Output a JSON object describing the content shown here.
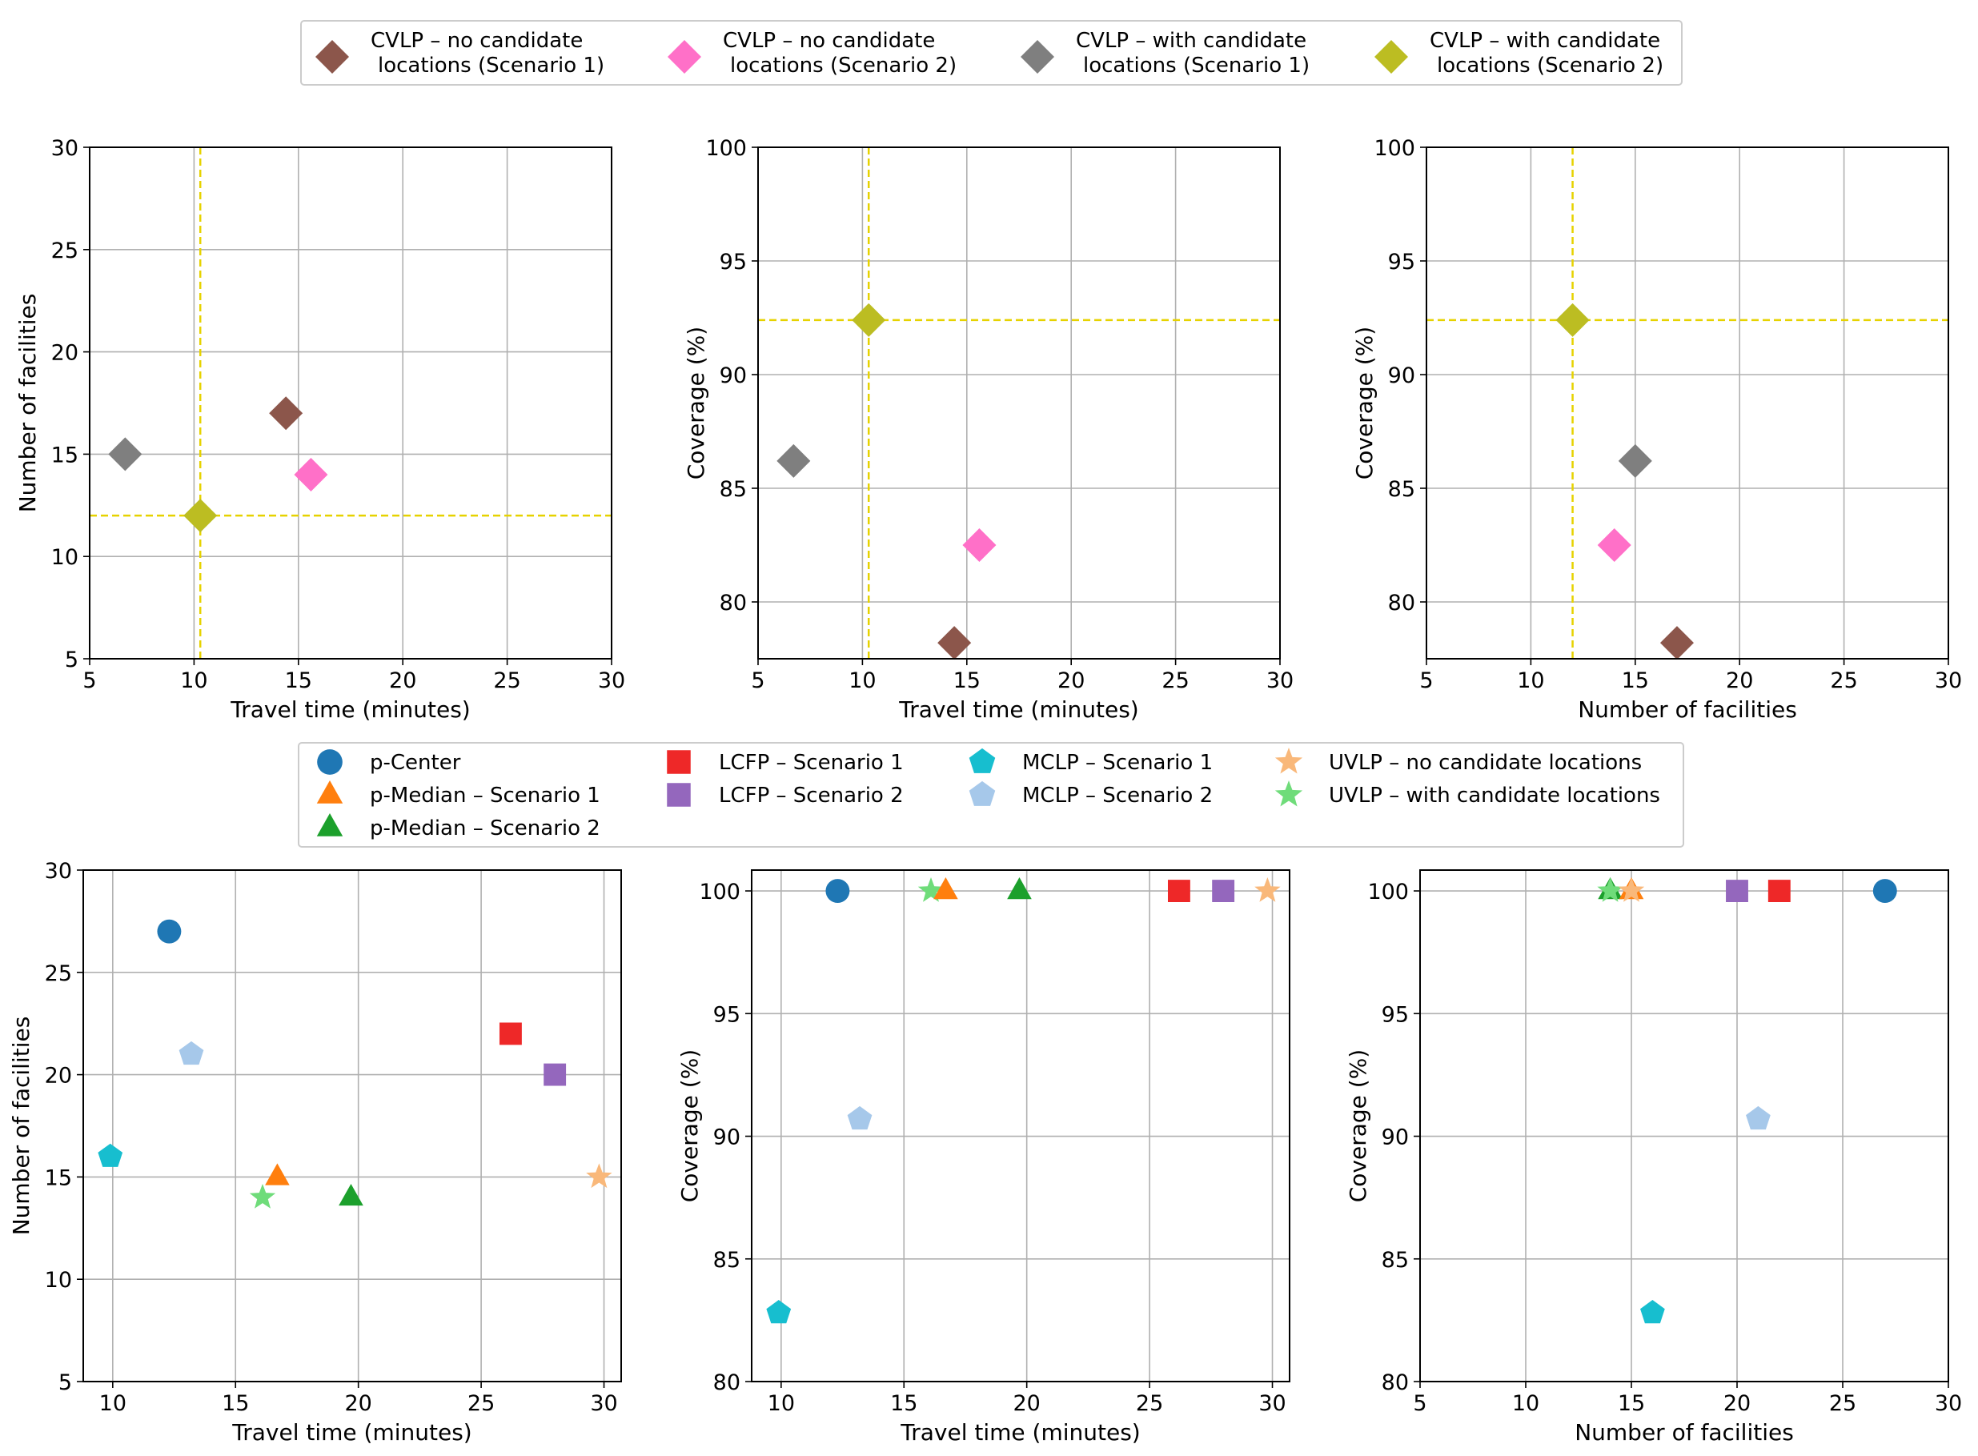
{
  "legends": {
    "top": {
      "entries": [
        {
          "key": "cvlp_nc_s1",
          "line1": "CVLP – no candidate",
          "line2": "locations (Scenario 1)"
        },
        {
          "key": "cvlp_nc_s2",
          "line1": "CVLP – no candidate",
          "line2": "locations (Scenario 2)"
        },
        {
          "key": "cvlp_wc_s1",
          "line1": "CVLP – with candidate",
          "line2": "locations (Scenario 1)"
        },
        {
          "key": "cvlp_wc_s2",
          "line1": "CVLP – with candidate",
          "line2": "locations (Scenario 2)"
        }
      ]
    },
    "bottom": {
      "entries": [
        {
          "key": "pcenter",
          "label": "p-Center"
        },
        {
          "key": "pmedian_s1",
          "label": "p-Median – Scenario 1"
        },
        {
          "key": "pmedian_s2",
          "label": "p-Median – Scenario 2"
        },
        {
          "key": "lcfp_s1",
          "label": "LCFP – Scenario 1"
        },
        {
          "key": "lcfp_s2",
          "label": "LCFP – Scenario 2"
        },
        {
          "key": "mclp_s1",
          "label": "MCLP – Scenario 1"
        },
        {
          "key": "mclp_s2",
          "label": "MCLP – Scenario 2"
        },
        {
          "key": "uvlp_nc",
          "label": "UVLP – no candidate locations"
        },
        {
          "key": "uvlp_wc",
          "label": "UVLP – with candidate locations"
        }
      ]
    }
  },
  "series_styles": {
    "cvlp_nc_s1": {
      "marker": "diamond",
      "color": "#8c564b"
    },
    "cvlp_nc_s2": {
      "marker": "diamond",
      "color": "#ff70c8"
    },
    "cvlp_wc_s1": {
      "marker": "diamond",
      "color": "#7f7f7f"
    },
    "cvlp_wc_s2": {
      "marker": "diamond",
      "color": "#bcbd22"
    },
    "pcenter": {
      "marker": "circle",
      "color": "#1f77b4"
    },
    "pmedian_s1": {
      "marker": "triangle",
      "color": "#ff7f0e"
    },
    "pmedian_s2": {
      "marker": "triangle",
      "color": "#1ca02c"
    },
    "lcfp_s1": {
      "marker": "square",
      "color": "#ee2828"
    },
    "lcfp_s2": {
      "marker": "square",
      "color": "#9467bd"
    },
    "mclp_s1": {
      "marker": "pentagon",
      "color": "#17becf"
    },
    "mclp_s2": {
      "marker": "pentagon",
      "color": "#a6c8ea"
    },
    "uvlp_nc": {
      "marker": "star",
      "color": "#f9b87a"
    },
    "uvlp_wc": {
      "marker": "star",
      "color": "#6fdc7a"
    }
  },
  "chart_data": [
    {
      "type": "scatter",
      "name": "top-left",
      "row": "top",
      "xlabel": "Travel time (minutes)",
      "ylabel": "Number of facilities",
      "xlim": [
        5,
        30
      ],
      "ylim": [
        5,
        30
      ],
      "xticks": [
        5,
        10,
        15,
        20,
        25,
        30
      ],
      "yticks": [
        5,
        10,
        15,
        20,
        25,
        30
      ],
      "ref_lines": {
        "x": 10.3,
        "y": 12,
        "color": "#e6d200"
      },
      "points": [
        {
          "series": "cvlp_nc_s1",
          "x": 14.4,
          "y": 17
        },
        {
          "series": "cvlp_nc_s2",
          "x": 15.6,
          "y": 14
        },
        {
          "series": "cvlp_wc_s1",
          "x": 6.7,
          "y": 15
        },
        {
          "series": "cvlp_wc_s2",
          "x": 10.3,
          "y": 12
        }
      ]
    },
    {
      "type": "scatter",
      "name": "top-middle",
      "row": "top",
      "xlabel": "Travel time (minutes)",
      "ylabel": "Coverage (%)",
      "xlim": [
        5,
        30
      ],
      "ylim": [
        77.5,
        100
      ],
      "xticks": [
        5,
        10,
        15,
        20,
        25,
        30
      ],
      "yticks": [
        80,
        85,
        90,
        95,
        100
      ],
      "ref_lines": {
        "x": 10.3,
        "y": 92.4,
        "color": "#e6d200"
      },
      "points": [
        {
          "series": "cvlp_nc_s1",
          "x": 14.4,
          "y": 78.2
        },
        {
          "series": "cvlp_nc_s2",
          "x": 15.6,
          "y": 82.5
        },
        {
          "series": "cvlp_wc_s1",
          "x": 6.7,
          "y": 86.2
        },
        {
          "series": "cvlp_wc_s2",
          "x": 10.3,
          "y": 92.4
        }
      ]
    },
    {
      "type": "scatter",
      "name": "top-right",
      "row": "top",
      "xlabel": "Number of facilities",
      "ylabel": "Coverage (%)",
      "xlim": [
        5,
        30
      ],
      "ylim": [
        77.5,
        100
      ],
      "xticks": [
        5,
        10,
        15,
        20,
        25,
        30
      ],
      "yticks": [
        80,
        85,
        90,
        95,
        100
      ],
      "ref_lines": {
        "x": 12,
        "y": 92.4,
        "color": "#e6d200"
      },
      "points": [
        {
          "series": "cvlp_nc_s1",
          "x": 17,
          "y": 78.2
        },
        {
          "series": "cvlp_nc_s2",
          "x": 14,
          "y": 82.5
        },
        {
          "series": "cvlp_wc_s1",
          "x": 15,
          "y": 86.2
        },
        {
          "series": "cvlp_wc_s2",
          "x": 12,
          "y": 92.4
        }
      ]
    },
    {
      "type": "scatter",
      "name": "bottom-left",
      "row": "bottom",
      "xlabel": "Travel time (minutes)",
      "ylabel": "Number of facilities",
      "xlim": [
        8.8,
        30.7
      ],
      "ylim": [
        5,
        30
      ],
      "xticks": [
        10,
        15,
        20,
        25,
        30
      ],
      "yticks": [
        5,
        10,
        15,
        20,
        25,
        30
      ],
      "points": [
        {
          "series": "pcenter",
          "x": 12.3,
          "y": 27
        },
        {
          "series": "mclp_s2",
          "x": 13.2,
          "y": 21
        },
        {
          "series": "mclp_s1",
          "x": 9.9,
          "y": 16
        },
        {
          "series": "pmedian_s1",
          "x": 16.7,
          "y": 15
        },
        {
          "series": "uvlp_wc",
          "x": 16.1,
          "y": 14
        },
        {
          "series": "pmedian_s2",
          "x": 19.7,
          "y": 14
        },
        {
          "series": "lcfp_s1",
          "x": 26.2,
          "y": 22
        },
        {
          "series": "lcfp_s2",
          "x": 28.0,
          "y": 20
        },
        {
          "series": "uvlp_nc",
          "x": 29.8,
          "y": 15
        }
      ]
    },
    {
      "type": "scatter",
      "name": "bottom-middle",
      "row": "bottom",
      "xlabel": "Travel time (minutes)",
      "ylabel": "Coverage (%)",
      "xlim": [
        8.8,
        30.7
      ],
      "ylim": [
        80,
        100.85
      ],
      "xticks": [
        10,
        15,
        20,
        25,
        30
      ],
      "yticks": [
        80,
        85,
        90,
        95,
        100
      ],
      "points": [
        {
          "series": "pcenter",
          "x": 12.3,
          "y": 100
        },
        {
          "series": "uvlp_wc",
          "x": 16.1,
          "y": 100
        },
        {
          "series": "pmedian_s1",
          "x": 16.7,
          "y": 100
        },
        {
          "series": "pmedian_s2",
          "x": 19.7,
          "y": 100
        },
        {
          "series": "lcfp_s1",
          "x": 26.2,
          "y": 100
        },
        {
          "series": "lcfp_s2",
          "x": 28.0,
          "y": 100
        },
        {
          "series": "uvlp_nc",
          "x": 29.8,
          "y": 100
        },
        {
          "series": "mclp_s2",
          "x": 13.2,
          "y": 90.7
        },
        {
          "series": "mclp_s1",
          "x": 9.9,
          "y": 82.8
        }
      ]
    },
    {
      "type": "scatter",
      "name": "bottom-right",
      "row": "bottom",
      "xlabel": "Number of facilities",
      "ylabel": "Coverage (%)",
      "xlim": [
        5,
        30
      ],
      "ylim": [
        80,
        100.85
      ],
      "xticks": [
        5,
        10,
        15,
        20,
        25,
        30
      ],
      "yticks": [
        80,
        85,
        90,
        95,
        100
      ],
      "points": [
        {
          "series": "pmedian_s2",
          "x": 14,
          "y": 100
        },
        {
          "series": "uvlp_wc",
          "x": 14,
          "y": 100
        },
        {
          "series": "pmedian_s1",
          "x": 15,
          "y": 100
        },
        {
          "series": "uvlp_nc",
          "x": 15,
          "y": 100
        },
        {
          "series": "lcfp_s2",
          "x": 20,
          "y": 100
        },
        {
          "series": "lcfp_s1",
          "x": 22,
          "y": 100
        },
        {
          "series": "pcenter",
          "x": 27,
          "y": 100
        },
        {
          "series": "mclp_s2",
          "x": 21,
          "y": 90.7
        },
        {
          "series": "mclp_s1",
          "x": 16,
          "y": 82.8
        }
      ]
    }
  ]
}
